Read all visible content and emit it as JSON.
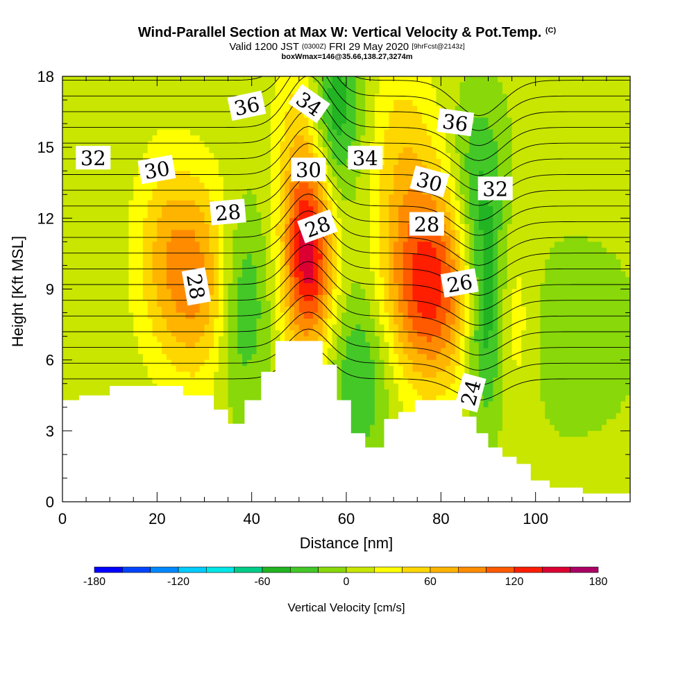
{
  "header": {
    "title": "Wind-Parallel Section at Max W: Vertical Velocity & Pot.Temp.",
    "title_mark": "(C)",
    "valid_prefix": "Valid 1200 JST",
    "valid_utc": "(0300Z)",
    "valid_date": "FRI 29 May 2020",
    "forecast_info": "[9hrFcst@2143z]",
    "box_info": "boxWmax=146@35.66,138.27,3274m"
  },
  "chart_data": {
    "type": "heatmap",
    "xlabel": "Distance [nm]",
    "ylabel": "Height [Kft MSL]",
    "xlim": [
      0,
      120
    ],
    "ylim": [
      0,
      18
    ],
    "x_ticks": [
      0,
      20,
      40,
      60,
      80,
      100
    ],
    "y_ticks": [
      0,
      3,
      6,
      9,
      12,
      15,
      18
    ],
    "colorbar": {
      "title": "Vertical Velocity [cm/s]",
      "min": -180,
      "max": 180,
      "step": 20,
      "tick_values": [
        -180,
        -120,
        -60,
        0,
        60,
        120,
        180
      ],
      "tick_labels": [
        "-180",
        "-120",
        "-60",
        "0",
        "60",
        "120",
        "180"
      ],
      "colors": [
        "#0000ff",
        "#0044ff",
        "#0088ff",
        "#00ccff",
        "#00e6e6",
        "#00cc88",
        "#22b422",
        "#44c828",
        "#88d80a",
        "#c8e600",
        "#ffff00",
        "#ffd700",
        "#ffb400",
        "#ff8c00",
        "#ff5a00",
        "#ff1e00",
        "#dc0032",
        "#aa0064",
        "#780078"
      ]
    },
    "terrain": [
      [
        0,
        4.3
      ],
      [
        3.5,
        4.3
      ],
      [
        3.5,
        4.5
      ],
      [
        10,
        4.5
      ],
      [
        10,
        4.9
      ],
      [
        22,
        4.9
      ],
      [
        22,
        4.9
      ],
      [
        25.5,
        4.9
      ],
      [
        25.5,
        4.5
      ],
      [
        32,
        4.5
      ],
      [
        32,
        3.9
      ],
      [
        35,
        3.9
      ],
      [
        35,
        3.3
      ],
      [
        38.5,
        3.3
      ],
      [
        38.5,
        4.3
      ],
      [
        42,
        4.3
      ],
      [
        42,
        5.5
      ],
      [
        45,
        5.5
      ],
      [
        45,
        6.8
      ],
      [
        55,
        6.8
      ],
      [
        55,
        5.8
      ],
      [
        58,
        5.8
      ],
      [
        58,
        4.3
      ],
      [
        61,
        4.3
      ],
      [
        61,
        2.9
      ],
      [
        64,
        2.9
      ],
      [
        64,
        2.3
      ],
      [
        68,
        2.3
      ],
      [
        68,
        3.5
      ],
      [
        71,
        3.5
      ],
      [
        71,
        3.8
      ],
      [
        74.5,
        3.8
      ],
      [
        74.5,
        4.3
      ],
      [
        84.5,
        4.3
      ],
      [
        84.5,
        3.6
      ],
      [
        87.5,
        3.6
      ],
      [
        87.5,
        2.9
      ],
      [
        90,
        2.9
      ],
      [
        90,
        2.3
      ],
      [
        93,
        2.3
      ],
      [
        93,
        1.9
      ],
      [
        96,
        1.9
      ],
      [
        96,
        1.6
      ],
      [
        99,
        1.6
      ],
      [
        99,
        0.9
      ],
      [
        103,
        0.9
      ],
      [
        103,
        0.6
      ],
      [
        110,
        0.6
      ],
      [
        110,
        0.35
      ],
      [
        120,
        0.35
      ]
    ],
    "velocity_features": [
      {
        "name": "updraft-main",
        "x": 52,
        "y": 10.5,
        "w": 37,
        "max": 146
      },
      {
        "name": "updraft-east",
        "x": 77.5,
        "y": 9.2,
        "w": 110,
        "max": 126
      },
      {
        "name": "updraft-west",
        "x": 30,
        "y": 9.2,
        "w": 80,
        "max": 72
      },
      {
        "name": "updraft-24",
        "x": 22,
        "y": 10.5,
        "w": 60,
        "max": 48
      },
      {
        "name": "updraft-93",
        "x": 94,
        "y": 7.5,
        "w": 35,
        "max": 45
      },
      {
        "name": "updraft-upper-52",
        "x": 51,
        "y": 16.5,
        "w": 40,
        "max": 40
      },
      {
        "name": "updraft-upper-72",
        "x": 72,
        "y": 15,
        "w": 60,
        "max": 38
      },
      {
        "name": "downdraft-36",
        "x": 37.5,
        "y": 8.5,
        "w": 45,
        "max": -62
      },
      {
        "name": "downdraft-63",
        "x": 63,
        "y": 5.5,
        "w": 60,
        "max": -48
      },
      {
        "name": "downdraft-90",
        "x": 90,
        "y": 7.5,
        "w": 25,
        "max": -82
      },
      {
        "name": "downdraft-57-upper",
        "x": 57,
        "y": 16.5,
        "w": 40,
        "max": -72
      },
      {
        "name": "downdraft-89-upper",
        "x": 88,
        "y": 13,
        "w": 40,
        "max": -55
      },
      {
        "name": "downdraft-far-east",
        "x": 108,
        "y": 7,
        "w": 250,
        "max": -22
      }
    ],
    "potential_temperature_contours": [
      {
        "label": "24",
        "level": 24
      },
      {
        "label": "26",
        "level": 26
      },
      {
        "label": "28",
        "level": 28
      },
      {
        "label": "30",
        "level": 30
      },
      {
        "label": "32",
        "level": 32
      },
      {
        "label": "34",
        "level": 34
      },
      {
        "label": "36",
        "level": 36
      }
    ],
    "contour_labels": [
      {
        "text": "32",
        "x": 6.5,
        "y": 14.5,
        "angle": 0
      },
      {
        "text": "30",
        "x": 20,
        "y": 14.0,
        "angle": -10
      },
      {
        "text": "36",
        "x": 39,
        "y": 16.7,
        "angle": -12
      },
      {
        "text": "34",
        "x": 52,
        "y": 16.8,
        "angle": 35
      },
      {
        "text": "30",
        "x": 52,
        "y": 14.0,
        "angle": 0
      },
      {
        "text": "34",
        "x": 64,
        "y": 14.5,
        "angle": 0
      },
      {
        "text": "36",
        "x": 83,
        "y": 16.0,
        "angle": 8
      },
      {
        "text": "30",
        "x": 77.5,
        "y": 13.5,
        "angle": 15
      },
      {
        "text": "32",
        "x": 91.5,
        "y": 13.2,
        "angle": 0
      },
      {
        "text": "28",
        "x": 35,
        "y": 12.2,
        "angle": -5
      },
      {
        "text": "28",
        "x": 54,
        "y": 11.6,
        "angle": -20
      },
      {
        "text": "28",
        "x": 77,
        "y": 11.7,
        "angle": 0
      },
      {
        "text": "28",
        "x": 28,
        "y": 9.1,
        "angle": 80
      },
      {
        "text": "26",
        "x": 84,
        "y": 9.2,
        "angle": -10
      },
      {
        "text": "24",
        "x": 86.5,
        "y": 4.6,
        "angle": -75
      }
    ]
  }
}
